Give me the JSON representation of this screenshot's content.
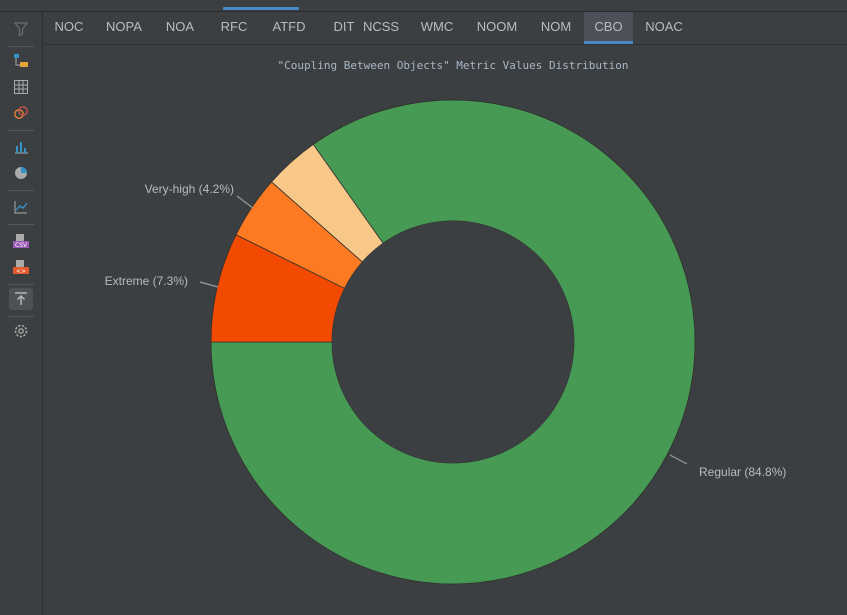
{
  "tabs": [
    {
      "label": "NOC"
    },
    {
      "label": "NOPA"
    },
    {
      "label": "NOA"
    },
    {
      "label": "RFC"
    },
    {
      "label": "ATFD"
    },
    {
      "label": "DIT"
    },
    {
      "label": "NCSS"
    },
    {
      "label": "WMC"
    },
    {
      "label": "NOOM"
    },
    {
      "label": "NOM"
    },
    {
      "label": "CBO"
    },
    {
      "label": "NOAC"
    }
  ],
  "active_tab": "CBO",
  "toolbar": {
    "icons": [
      "filter-icon",
      "class-tree-icon",
      "grid-icon",
      "circles-icon",
      "bar-chart-icon",
      "pie-chart-icon",
      "line-chart-icon",
      "export-csv-icon",
      "export-xml-icon",
      "export-up-icon",
      "settings-icon"
    ],
    "active": "export-up-icon"
  },
  "chart_data": {
    "type": "pie",
    "title": "\"Coupling Between Objects\" Metric Values Distribution",
    "donut": true,
    "slices": [
      {
        "label": "Regular (84.8%)",
        "value": 84.8,
        "color": "#479a53"
      },
      {
        "label": "",
        "value": 3.7,
        "color": "#f8c888"
      },
      {
        "label": "Very-high (4.2%)",
        "value": 4.2,
        "color": "#fd7a22"
      },
      {
        "label": "Extreme (7.3%)",
        "value": 7.3,
        "color": "#f24a01"
      }
    ]
  }
}
